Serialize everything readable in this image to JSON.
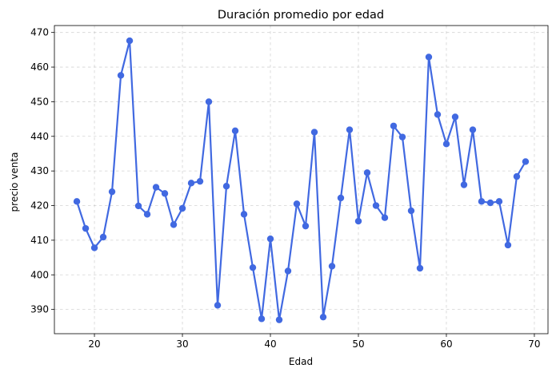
{
  "chart_data": {
    "type": "line",
    "title": "Duración promedio por edad",
    "xlabel": "Edad",
    "ylabel": "precio venta",
    "xlim": [
      15.45,
      71.55
    ],
    "ylim": [
      383.0,
      472.0
    ],
    "xticks": [
      20,
      30,
      40,
      50,
      60,
      70
    ],
    "yticks": [
      390,
      400,
      410,
      420,
      430,
      440,
      450,
      460,
      470
    ],
    "grid": true,
    "color": "#4169e1",
    "marker": "circle",
    "x": [
      18,
      19,
      20,
      21,
      22,
      23,
      24,
      25,
      26,
      27,
      28,
      29,
      30,
      31,
      32,
      33,
      34,
      35,
      36,
      37,
      38,
      39,
      40,
      41,
      42,
      43,
      44,
      45,
      46,
      47,
      48,
      49,
      50,
      51,
      52,
      53,
      54,
      55,
      56,
      57,
      58,
      59,
      60,
      61,
      62,
      63,
      64,
      65,
      66,
      67,
      68,
      69
    ],
    "y": [
      421.2,
      413.4,
      407.8,
      410.9,
      424.0,
      457.6,
      467.6,
      419.9,
      417.5,
      425.3,
      423.5,
      414.5,
      419.2,
      426.5,
      427.0,
      450.0,
      391.2,
      425.6,
      441.6,
      417.5,
      402.1,
      387.3,
      410.4,
      387.0,
      401.1,
      420.5,
      414.1,
      441.2,
      387.8,
      402.5,
      422.2,
      441.9,
      415.5,
      429.5,
      420.0,
      416.5,
      443.0,
      439.8,
      418.5,
      401.9,
      462.9,
      446.3,
      437.8,
      445.6,
      426.0,
      441.9,
      421.2,
      420.8,
      421.2,
      408.6,
      428.4,
      432.7
    ]
  }
}
